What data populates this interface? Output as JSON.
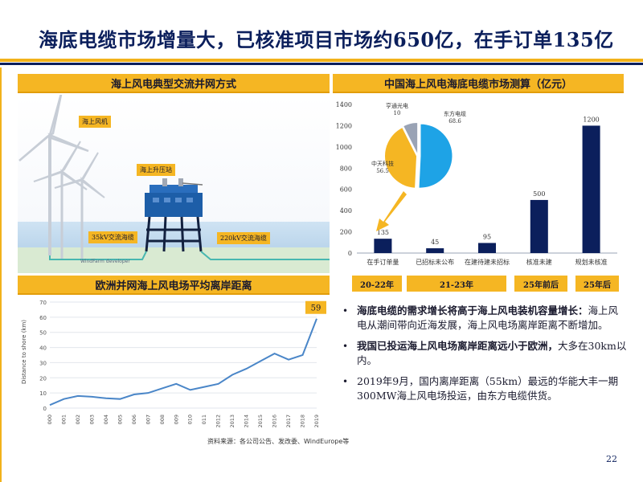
{
  "title": "海底电缆市场增量大，已核准项目市场约650亿，在手订单135亿",
  "colors": {
    "navy": "#0b1f5c",
    "gold": "#f5b623",
    "bar": "#0b1f5c",
    "line": "#4a86c8",
    "pie_blue": "#1ea3e6",
    "pie_yellow": "#f5b623",
    "pie_grey": "#9aa3b5"
  },
  "left_top": {
    "header": "海上风电典型交流并网方式",
    "labels": {
      "turbine": "海上风机",
      "substation": "海上升压站",
      "cable35": "35kV交流海缆",
      "cable220": "220kV交流海缆",
      "developer": "WindFarm developer"
    }
  },
  "left_bottom": {
    "header": "欧洲并网海上风电场平均离岸距离",
    "source": "资料来源：各公司公告、发改委、WindEurope等"
  },
  "right_top": {
    "header": "中国海上风电海底电缆市场测算（亿元）"
  },
  "periods": [
    "20-22年",
    "21-23年",
    "25年前后",
    "25年后"
  ],
  "bullets": [
    {
      "bold": "海底电缆的需求增长将高于海上风电装机容量增长：",
      "text": "海上风电从潮间带向近海发展，海上风电场离岸距离不断增加。"
    },
    {
      "bold": "我国已投运海上风电场离岸距离远小于欧洲，",
      "text": "大多在30km以内。"
    },
    {
      "bold": "",
      "text": "2019年9月，国内离岸距离（55km）最远的华能大丰一期300MW海上风电场投运，由东方电缆供货。"
    }
  ],
  "page_number": "22",
  "chart_data": [
    {
      "type": "bar",
      "title": "中国海上风电海底电缆市场测算（亿元）",
      "categories": [
        "在手订单量",
        "已招标未公布",
        "在建待建未招标",
        "核准未建",
        "规划未核准"
      ],
      "values": [
        135,
        45,
        95,
        500,
        1200
      ],
      "ylim": [
        0,
        1400
      ],
      "yticks": [
        0,
        200,
        400,
        600,
        800,
        1000,
        1200,
        1400
      ],
      "grid": false
    },
    {
      "type": "pie",
      "labels": [
        "东方电缆",
        "中天科技",
        "亨通光电"
      ],
      "values": [
        68.6,
        56.5,
        10
      ]
    },
    {
      "type": "line",
      "title": "欧洲并网海上风电场平均离岸距离",
      "ylabel": "Distance to shore (km)",
      "x": [
        "2000",
        "2001",
        "2002",
        "2003",
        "2004",
        "2005",
        "2006",
        "2007",
        "2008",
        "2009",
        "2010",
        "2011",
        "2012",
        "2013",
        "2014",
        "2015",
        "2016",
        "2017",
        "2018",
        "2019"
      ],
      "x_tick_labels": [
        "000",
        "001",
        "002",
        "003",
        "004",
        "005",
        "006",
        "007",
        "008",
        "009",
        "010",
        "011",
        "2012",
        "2013",
        "2014",
        "2015",
        "2016",
        "2017",
        "2018",
        "2019"
      ],
      "values": [
        2,
        6,
        8,
        7.5,
        6.5,
        6,
        9,
        10,
        13,
        16,
        12,
        14,
        16,
        22,
        26,
        31,
        36,
        32,
        35,
        59
      ],
      "ylim": [
        0,
        70
      ],
      "yticks": [
        0,
        10,
        20,
        30,
        40,
        50,
        60,
        70
      ],
      "annotation": "59",
      "grid": true
    }
  ]
}
